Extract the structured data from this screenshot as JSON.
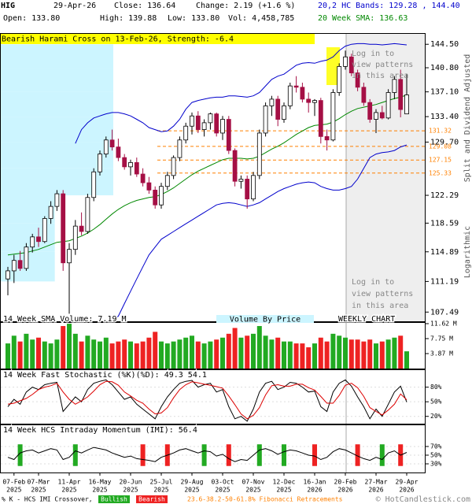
{
  "header": {
    "ticker": "HIG",
    "date": "29-Apr-26",
    "close": "Close: 136.64",
    "change": "Change: 2.19 (+1.6 %)",
    "open": "Open: 133.80",
    "high": "High: 139.88",
    "low": "Low: 133.80",
    "volume": "Vol: 4,458,785"
  },
  "watermark": "© HotCandlestick.com",
  "chart_data": [
    {
      "type": "candlestick",
      "annotation": "Bearish Harami Cross on 13-Feb-26, Strength: -6.4",
      "locked_notes": [
        [
          "Log in to",
          "view patterns",
          "in this area"
        ],
        [
          "Log in to",
          "view patterns",
          "in this area"
        ]
      ],
      "adjustment_note": "Split and Dividend Adjusted",
      "scale_label": "Logarithmic",
      "log_scale": true,
      "categories": [
        null,
        "07-Feb",
        null,
        null,
        null,
        "07-Mar",
        null,
        null,
        null,
        null,
        "11-Apr",
        null,
        null,
        null,
        null,
        "16-May",
        null,
        null,
        null,
        null,
        "20-Jun",
        null,
        null,
        null,
        null,
        "25-Jul",
        null,
        null,
        null,
        null,
        "29-Aug",
        null,
        null,
        null,
        null,
        "03-Oct",
        null,
        null,
        null,
        null,
        "07-Nov",
        null,
        null,
        null,
        null,
        "12-Dec",
        null,
        null,
        null,
        null,
        "16-Jan",
        null,
        null,
        null,
        null,
        "20-Feb",
        null,
        null,
        null,
        null,
        "27-Mar",
        null,
        null,
        null,
        null,
        "29-Apr"
      ],
      "category_years": [
        null,
        "2025",
        null,
        null,
        null,
        "2025",
        null,
        null,
        null,
        null,
        "2025",
        null,
        null,
        null,
        null,
        "2025",
        null,
        null,
        null,
        null,
        "2025",
        null,
        null,
        null,
        null,
        "2025",
        null,
        null,
        null,
        null,
        "2025",
        null,
        null,
        null,
        null,
        "2025",
        null,
        null,
        null,
        null,
        "2025",
        null,
        null,
        null,
        null,
        "2025",
        null,
        null,
        null,
        null,
        "2026",
        null,
        null,
        null,
        null,
        "2026",
        null,
        null,
        null,
        null,
        "2026",
        null,
        null,
        null,
        null,
        "2026"
      ],
      "open": [
        111.5,
        112.5,
        113.8,
        112.8,
        115.5,
        116.8,
        116.2,
        119.2,
        120.8,
        122.5,
        113.5,
        115.2,
        118.2,
        117.5,
        122,
        125.5,
        128,
        130,
        129,
        127.5,
        126.2,
        126.8,
        125.2,
        124,
        123,
        121,
        123.5,
        125,
        127.5,
        130,
        132,
        133.5,
        131.5,
        132.5,
        133.8,
        131,
        133,
        128.5,
        124.2,
        124.5,
        121.8,
        125,
        131,
        135,
        136,
        133,
        135,
        138,
        137.8,
        136,
        135.5,
        135.8,
        130.5,
        130,
        137,
        141,
        142.5,
        140,
        137.8,
        135.5,
        133,
        134,
        133.2,
        137,
        139,
        133.8
      ],
      "high": [
        113,
        114.5,
        115,
        116,
        117.2,
        118,
        119.5,
        121.5,
        123,
        123,
        116,
        119,
        120,
        122.5,
        126,
        128.5,
        130.5,
        131.5,
        130.2,
        128,
        127.2,
        127.5,
        126,
        124.8,
        123.5,
        124,
        125.5,
        127.8,
        130.5,
        132.5,
        134,
        134.2,
        133,
        134,
        134,
        133.5,
        133.5,
        128.8,
        125,
        125,
        125.5,
        131.5,
        135.5,
        136.5,
        136.5,
        135.5,
        138.5,
        139.5,
        138.5,
        137,
        136,
        136.2,
        131.5,
        137.5,
        141.5,
        143.5,
        143,
        140.5,
        138.5,
        136,
        134.5,
        135,
        137.5,
        139.5,
        140.5,
        139.88
      ],
      "low": [
        109.5,
        111,
        112.5,
        112.5,
        114.8,
        115.5,
        116,
        118.5,
        120.2,
        112.5,
        107.3,
        114.5,
        117,
        117.2,
        121.5,
        125,
        127.5,
        128.5,
        127,
        125.8,
        125,
        124.8,
        123.5,
        122.5,
        120.5,
        120.5,
        123,
        124.5,
        127,
        129.5,
        130.8,
        131,
        130.5,
        131.5,
        130.5,
        130,
        128,
        123.5,
        123.2,
        120.5,
        121.5,
        124.5,
        130.5,
        133.5,
        132,
        132.5,
        134.5,
        137,
        135.5,
        134,
        133.5,
        129.5,
        128.5,
        129.8,
        136.5,
        140.5,
        139.5,
        137.2,
        135,
        132.5,
        131,
        133,
        133,
        136,
        133.3,
        133.8
      ],
      "close": [
        112.5,
        113.8,
        112.8,
        115.5,
        116.8,
        116.2,
        119.2,
        120.8,
        122.5,
        113.5,
        115.2,
        118.2,
        117.5,
        122,
        125.5,
        128,
        130,
        129,
        127.5,
        126.2,
        126.8,
        125.2,
        124,
        123,
        121,
        123.5,
        125,
        127.5,
        130,
        132,
        133.5,
        131.5,
        132.5,
        133.8,
        131,
        133,
        128.5,
        124.2,
        124.5,
        121.8,
        125,
        131,
        135,
        136,
        133,
        135,
        138,
        137.8,
        136,
        135.5,
        135.8,
        130.5,
        130,
        137,
        141,
        142.5,
        140,
        137.8,
        135.5,
        133,
        134,
        133.2,
        137,
        139,
        134.45,
        136.64
      ],
      "up_color": "#ffffff",
      "down_color": "#a50f45",
      "outline_color": "#000000",
      "sma": {
        "name": "20 Week SMA: 136.63",
        "color": "#008800",
        "values": [
          114.5,
          114.6,
          114.7,
          114.8,
          115,
          115.2,
          115.5,
          115.8,
          116.1,
          116.2,
          116.3,
          116.6,
          116.9,
          117.3,
          117.8,
          118.4,
          119.1,
          119.8,
          120.4,
          120.9,
          121.3,
          121.6,
          121.8,
          122,
          122.1,
          122.4,
          122.8,
          123.3,
          123.9,
          124.5,
          125.1,
          125.6,
          126,
          126.4,
          126.8,
          127.2,
          127.4,
          127.4,
          127.4,
          127.3,
          127.4,
          127.7,
          128.2,
          128.7,
          129.1,
          129.6,
          130.2,
          130.8,
          131.3,
          131.8,
          132.1,
          132.2,
          132.3,
          132.6,
          133.1,
          133.7,
          134.2,
          134.6,
          134.8,
          135,
          135.2,
          135.5,
          135.8,
          136.1,
          136.3,
          136.63
        ]
      },
      "bands": {
        "name": "20,2 HC Bands: 129.28 , 144.40",
        "color": "#0000cc",
        "upper": [
          null,
          null,
          null,
          null,
          null,
          null,
          null,
          null,
          null,
          null,
          null,
          129.5,
          131.5,
          132.5,
          133.2,
          133.5,
          133.8,
          134,
          134,
          133.8,
          133.5,
          133,
          132.5,
          131.8,
          131.5,
          131.2,
          131.3,
          132,
          133,
          134.5,
          135.5,
          135.8,
          136,
          136.2,
          136.3,
          136.3,
          136.5,
          136.5,
          136.4,
          136.3,
          136.5,
          137,
          138,
          139,
          139.5,
          139.8,
          140.5,
          141.2,
          141.5,
          141.6,
          141.5,
          141.8,
          142,
          142.5,
          143.5,
          144.2,
          144.5,
          144.6,
          144.6,
          144.5,
          144.5,
          144.4,
          144.5,
          144.6,
          144.5,
          144.4
        ],
        "lower": [
          null,
          null,
          null,
          null,
          null,
          null,
          null,
          null,
          null,
          null,
          null,
          null,
          null,
          null,
          null,
          null,
          null,
          106.5,
          107,
          108.5,
          110,
          111.5,
          113,
          114.5,
          115.5,
          116.5,
          117,
          117.5,
          118,
          118.5,
          119,
          119.5,
          120,
          120.5,
          121,
          121.2,
          121.3,
          121.2,
          121,
          120.8,
          121,
          121.3,
          121.8,
          122.3,
          122.8,
          123.2,
          123.5,
          123.8,
          124,
          124.1,
          124,
          123.5,
          123.2,
          123,
          123,
          123.2,
          123.5,
          124.5,
          126,
          127.5,
          128,
          128.2,
          128.3,
          128.5,
          129,
          129.28
        ]
      },
      "fib_levels": [
        131.32,
        129.08,
        127.15,
        125.33
      ],
      "fib_color": "#ff8000",
      "fib_name": "23.6-38.2-50-61.8% Fibonacci Retracements",
      "volume_by_price": {
        "name": "Volume By Price",
        "color": "#ccf5ff",
        "bins": [
          107.49,
          111.19,
          114.89,
          118.59,
          122.29,
          126,
          129.7,
          133.4,
          137.1,
          140.8,
          144.5
        ],
        "values": [
          0,
          48,
          48,
          48,
          100,
          100,
          100,
          100,
          100,
          100
        ]
      },
      "ylim": [
        106.4,
        146.3
      ],
      "yticks": [
        {
          "value": 144.5,
          "label": "144.50"
        },
        {
          "value": 140.8,
          "label": "140.80"
        },
        {
          "value": 137.1,
          "label": "137.10"
        },
        {
          "value": 133.4,
          "label": "133.40"
        },
        {
          "value": 129.7,
          "label": "129.70"
        },
        122.29,
        118.59,
        114.89,
        111.19,
        107.49
      ]
    },
    {
      "type": "bar",
      "title": "14 Week SMA Volume: 7.19 M",
      "chart_label": "WEEKLY CHART",
      "values": [
        6.5,
        8.5,
        7,
        9,
        7.5,
        8,
        7,
        6.5,
        7.5,
        11,
        11.6,
        9,
        7,
        8.5,
        7.5,
        7,
        8,
        6.5,
        7,
        7.5,
        7,
        6.5,
        7,
        8,
        9.5,
        7,
        6.5,
        7,
        7.5,
        8,
        8.5,
        7,
        6.5,
        7,
        7.5,
        8,
        9,
        10.5,
        8,
        8.5,
        9,
        11,
        8.5,
        7.5,
        8,
        7,
        7,
        6.5,
        6.5,
        5.5,
        6.5,
        8,
        7,
        9,
        8.5,
        8,
        7.5,
        7.5,
        7,
        7.5,
        6.5,
        7,
        7.5,
        8,
        8.5,
        4.46
      ],
      "up_color": "#22aa22",
      "down_color": "#ee2222",
      "ylim": [
        0,
        11.82
      ],
      "yticks": [
        {
          "value": 11.62,
          "label": "11.62 M"
        },
        {
          "value": 7.75,
          "label": "7.75 M"
        },
        {
          "value": 3.87,
          "label": "3.87 M"
        }
      ]
    },
    {
      "type": "line",
      "title": "14 Week Fast Stochastic (%K)(%D): 49.3 54.1",
      "series": [
        {
          "color": "#000000",
          "values": [
            40,
            55,
            45,
            70,
            80,
            75,
            85,
            88,
            90,
            30,
            45,
            60,
            50,
            75,
            88,
            92,
            95,
            85,
            70,
            55,
            60,
            45,
            35,
            25,
            15,
            40,
            60,
            75,
            88,
            92,
            94,
            80,
            85,
            88,
            70,
            75,
            40,
            15,
            20,
            10,
            35,
            70,
            88,
            92,
            75,
            80,
            90,
            88,
            80,
            70,
            72,
            40,
            30,
            70,
            88,
            95,
            82,
            60,
            40,
            15,
            35,
            20,
            45,
            70,
            82,
            49.3
          ]
        },
        {
          "color": "#dd0000",
          "values": [
            45,
            47,
            52,
            57,
            65,
            75,
            80,
            83,
            88,
            70,
            55,
            45,
            52,
            60,
            72,
            85,
            92,
            91,
            84,
            70,
            62,
            53,
            47,
            35,
            25,
            27,
            38,
            58,
            75,
            85,
            91,
            89,
            86,
            84,
            81,
            78,
            62,
            44,
            25,
            15,
            22,
            38,
            64,
            83,
            85,
            82,
            82,
            86,
            86,
            79,
            74,
            61,
            47,
            47,
            63,
            84,
            88,
            79,
            61,
            38,
            30,
            23,
            33,
            45,
            66,
            54.1
          ]
        }
      ],
      "ylim": [
        5,
        115
      ],
      "yticks": [
        {
          "value": 80,
          "label": "80%"
        },
        {
          "value": 50,
          "label": "50%"
        },
        {
          "value": 20,
          "label": "20%"
        }
      ]
    },
    {
      "type": "line",
      "title": "14 Week HCS Intraday Momentum (IMI): 56.4",
      "series": [
        {
          "color": "#000000",
          "values": [
            45,
            40,
            55,
            60,
            62,
            55,
            60,
            65,
            62,
            40,
            45,
            60,
            55,
            62,
            68,
            65,
            62,
            55,
            50,
            45,
            48,
            42,
            40,
            38,
            35,
            45,
            50,
            55,
            62,
            65,
            60,
            55,
            60,
            58,
            48,
            52,
            42,
            35,
            40,
            38,
            50,
            62,
            65,
            60,
            52,
            58,
            62,
            60,
            55,
            50,
            48,
            40,
            45,
            58,
            65,
            62,
            55,
            48,
            42,
            38,
            45,
            40,
            55,
            60,
            50,
            56.4
          ]
        }
      ],
      "signal_legend": "% K - HCS IMI Crossover,",
      "bullish_name": "Bullish",
      "bearish_name": "Bearish",
      "bullish_color": "#22aa22",
      "bearish_color": "#ee2222",
      "bullish": [
        2,
        11,
        32,
        41,
        45,
        61
      ],
      "bearish": [
        22,
        26,
        36,
        50,
        57,
        64
      ],
      "ylim": [
        10,
        119
      ],
      "yticks": [
        {
          "value": 70,
          "label": "70%"
        },
        {
          "value": 50,
          "label": "50%"
        },
        {
          "value": 30,
          "label": "30%"
        }
      ]
    }
  ]
}
